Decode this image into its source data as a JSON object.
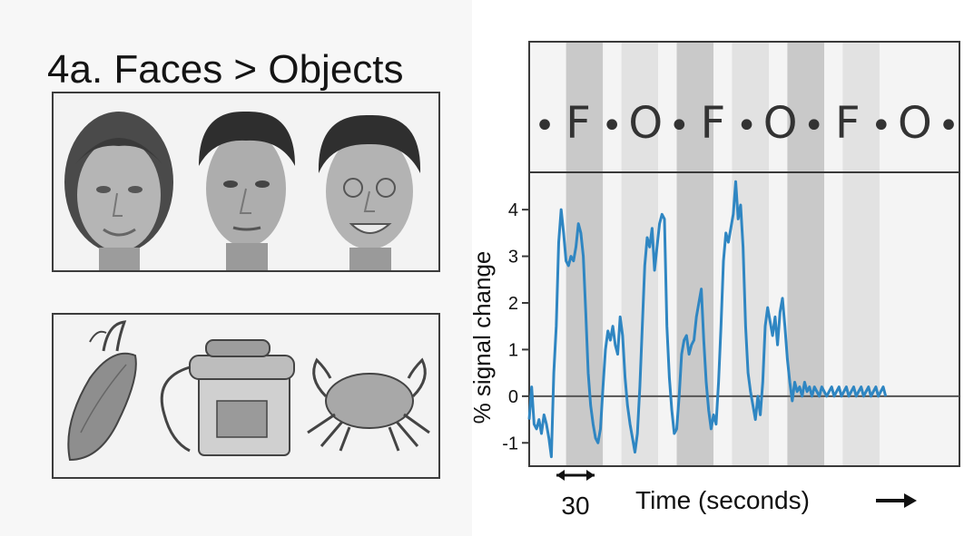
{
  "figure": {
    "title": "4a. Faces > Objects",
    "stimuli": {
      "faces": [
        "female-face",
        "male-face",
        "smiling-male-face"
      ],
      "objects": [
        "corn-cob",
        "telephone",
        "crab"
      ]
    }
  },
  "chart_data": {
    "type": "line",
    "title": "",
    "xlabel": "Time (seconds)",
    "ylabel": "% signal change",
    "scale_bar_label": "30",
    "ylim": [
      -1.5,
      4.8
    ],
    "yticks": [
      -1,
      0,
      1,
      2,
      3,
      4
    ],
    "xlim": [
      0,
      350
    ],
    "grid": false,
    "condition_sequence": [
      "•",
      "F",
      "•",
      "O",
      "•",
      "F",
      "•",
      "O",
      "•",
      "F",
      "•",
      "O",
      "•"
    ],
    "blocks": [
      {
        "label": "•",
        "start": 0,
        "end": 30
      },
      {
        "label": "F",
        "start": 30,
        "end": 60
      },
      {
        "label": "•",
        "start": 60,
        "end": 75
      },
      {
        "label": "O",
        "start": 75,
        "end": 105
      },
      {
        "label": "•",
        "start": 105,
        "end": 120
      },
      {
        "label": "F",
        "start": 120,
        "end": 150
      },
      {
        "label": "•",
        "start": 150,
        "end": 165
      },
      {
        "label": "O",
        "start": 165,
        "end": 195
      },
      {
        "label": "•",
        "start": 195,
        "end": 210
      },
      {
        "label": "F",
        "start": 210,
        "end": 240
      },
      {
        "label": "•",
        "start": 240,
        "end": 255
      },
      {
        "label": "O",
        "start": 255,
        "end": 285
      },
      {
        "label": "•",
        "start": 285,
        "end": 350
      }
    ],
    "series": [
      {
        "color": "#2f86c2",
        "x": [
          0,
          2,
          4,
          6,
          8,
          10,
          12,
          14,
          16,
          18,
          20,
          22,
          24,
          26,
          28,
          30,
          32,
          34,
          36,
          38,
          40,
          42,
          44,
          46,
          48,
          50,
          52,
          54,
          56,
          58,
          60,
          62,
          64,
          66,
          68,
          70,
          72,
          74,
          76,
          78,
          80,
          82,
          84,
          86,
          88,
          90,
          92,
          94,
          96,
          98,
          100,
          102,
          104,
          106,
          108,
          110,
          112,
          114,
          116,
          118,
          120,
          122,
          124,
          126,
          128,
          130,
          132,
          134,
          136,
          138,
          140,
          142,
          144,
          146,
          148,
          150,
          152,
          154,
          156,
          158,
          160,
          162,
          164,
          166,
          168,
          170,
          172,
          174,
          176,
          178,
          180,
          182,
          184,
          186,
          188,
          190,
          192,
          194,
          196,
          198,
          200,
          202,
          204,
          206,
          208,
          210,
          212,
          214,
          216,
          218,
          220,
          222,
          224,
          226,
          228,
          230,
          232,
          234,
          236,
          238,
          240,
          242,
          244,
          246,
          248,
          250,
          252,
          254,
          256,
          258,
          260,
          262,
          264,
          266,
          268,
          270,
          272,
          274,
          276,
          278,
          280,
          282,
          284,
          286,
          288,
          290
        ],
        "y": [
          -0.5,
          0.2,
          -0.6,
          -0.7,
          -0.5,
          -0.8,
          -0.4,
          -0.6,
          -0.9,
          -1.3,
          0.5,
          1.5,
          3.3,
          4.0,
          3.5,
          2.9,
          2.8,
          3.0,
          2.9,
          3.2,
          3.7,
          3.5,
          3.0,
          1.8,
          0.5,
          -0.2,
          -0.6,
          -0.9,
          -1.0,
          -0.7,
          0.2,
          1.0,
          1.4,
          1.2,
          1.5,
          1.1,
          0.9,
          1.7,
          1.3,
          0.4,
          -0.2,
          -0.6,
          -0.9,
          -1.2,
          -0.8,
          0.2,
          1.5,
          2.8,
          3.4,
          3.2,
          3.6,
          2.7,
          3.2,
          3.7,
          3.9,
          3.8,
          1.5,
          0.4,
          -0.3,
          -0.8,
          -0.7,
          0.0,
          0.9,
          1.2,
          1.3,
          0.9,
          1.1,
          1.2,
          1.7,
          2.0,
          2.3,
          1.2,
          0.3,
          -0.3,
          -0.7,
          -0.4,
          -0.6,
          0.3,
          1.5,
          2.9,
          3.5,
          3.3,
          3.6,
          3.9,
          4.6,
          3.8,
          4.1,
          3.2,
          1.5,
          0.5,
          0.1,
          -0.2,
          -0.5,
          0.0,
          -0.4,
          0.3,
          1.5,
          1.9,
          1.6,
          1.3,
          1.7,
          1.1,
          1.8,
          2.1,
          1.5,
          0.8,
          0.3,
          -0.1,
          0.3,
          0.1,
          0.2,
          0.0,
          0.3,
          0.1,
          0.2,
          0.0,
          0.2,
          0.1,
          0.0,
          0.2,
          0.1,
          0.0,
          0.1,
          0.2,
          0.0,
          0.1,
          0.2,
          0.0,
          0.1,
          0.2,
          0.0,
          0.1,
          0.2,
          0.0,
          0.1,
          0.2,
          0.0,
          0.1,
          0.2,
          0.0,
          0.1,
          0.2,
          0.0,
          0.1,
          0.2,
          0.0
        ]
      }
    ]
  },
  "colors": {
    "trace": "#2f86c2",
    "face_block": "#c9c9c9",
    "object_block": "#e2e2e2",
    "fixation_block": "#f4f4f4",
    "axis": "#3a3a3a"
  }
}
